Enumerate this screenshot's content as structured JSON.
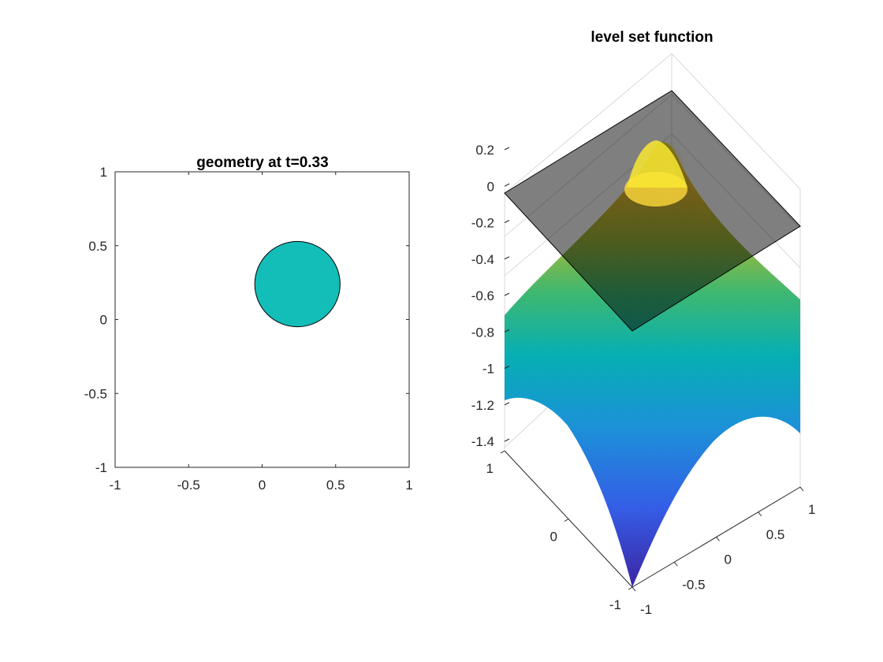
{
  "chart_data": [
    {
      "type": "scatter",
      "title": "geometry at t=0.33",
      "xlim": [
        -1,
        1
      ],
      "ylim": [
        -1,
        1
      ],
      "x_ticks": [
        -1,
        -0.5,
        0,
        0.5,
        1
      ],
      "y_ticks": [
        -1,
        -0.5,
        0,
        0.5,
        1
      ],
      "x_tick_labels": [
        "-1",
        "-0.5",
        "0",
        "0.5",
        "1"
      ],
      "y_tick_labels": [
        "-1",
        "-0.5",
        "0",
        "0.5",
        "1"
      ],
      "grid": false,
      "shapes": [
        {
          "shape": "circle",
          "center": [
            0.24,
            0.24
          ],
          "radius": 0.29,
          "fill": "#14BEB8"
        }
      ]
    },
    {
      "type": "surface",
      "title": "level set function",
      "x_range": [
        -1,
        1
      ],
      "y_range": [
        -1,
        1
      ],
      "zlim": [
        -1.45,
        0.25
      ],
      "z_ticks": [
        0.2,
        0,
        -0.2,
        -0.4,
        -0.6,
        -0.8,
        -1,
        -1.2,
        -1.4
      ],
      "z_tick_labels": [
        "0.2",
        "0",
        "-0.2",
        "-0.4",
        "-0.6",
        "-0.8",
        "-1",
        "-1.2",
        "-1.4"
      ],
      "x_ticks": [
        -1,
        0,
        1
      ],
      "x_tick_labels": [
        "-1",
        "0",
        "1"
      ],
      "y_ticks": [
        -1,
        -0.5,
        0,
        0.5,
        1
      ],
      "y_tick_labels": [
        "-1",
        "-0.5",
        "0",
        "0.5",
        "1"
      ],
      "surface": {
        "center": [
          0.24,
          0.24
        ],
        "peak": 0.29,
        "colormap": "parula"
      },
      "zero_plane": {
        "z": 0,
        "color": "#000000",
        "opacity": 0.5
      },
      "grid": true
    }
  ]
}
